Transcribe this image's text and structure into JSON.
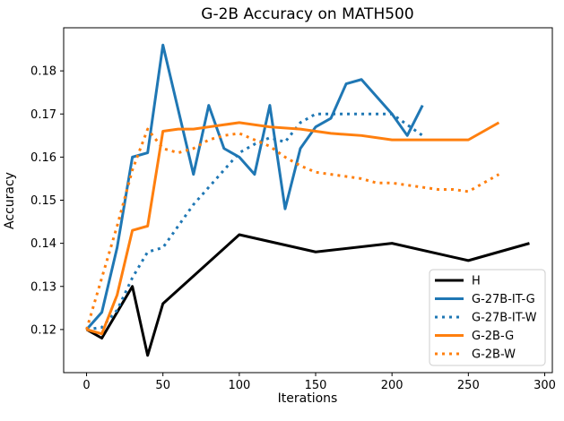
{
  "window": {
    "background": "#ffffff"
  },
  "chart_data": {
    "type": "line",
    "title": "G-2B Accuracy on MATH500",
    "xlabel": "Iterations",
    "ylabel": "Accuracy",
    "xlim": [
      -15,
      305
    ],
    "ylim": [
      0.11,
      0.19
    ],
    "xticks": [
      0,
      50,
      100,
      150,
      200,
      250,
      300
    ],
    "yticks": [
      0.12,
      0.13,
      0.14,
      0.15,
      0.16,
      0.17,
      0.18
    ],
    "grid": false,
    "legend_position": "lower right",
    "legend_entries": [
      "H",
      "G-27B-IT-G",
      "G-27B-IT-W",
      "G-2B-G",
      "G-2B-W"
    ],
    "series": [
      {
        "name": "H",
        "color": "#000000",
        "style": "solid",
        "x": [
          0,
          10,
          30,
          40,
          50,
          100,
          150,
          200,
          250,
          290
        ],
        "y": [
          0.12,
          0.118,
          0.13,
          0.114,
          0.126,
          0.142,
          0.138,
          0.14,
          0.136,
          0.14
        ]
      },
      {
        "name": "G-27B-IT-G",
        "color": "#1f77b4",
        "style": "solid",
        "x": [
          0,
          10,
          20,
          30,
          40,
          50,
          60,
          70,
          80,
          90,
          100,
          110,
          120,
          130,
          140,
          150,
          160,
          170,
          180,
          190,
          200,
          210,
          220
        ],
        "y": [
          0.12,
          0.124,
          0.139,
          0.16,
          0.161,
          0.186,
          0.171,
          0.156,
          0.172,
          0.162,
          0.16,
          0.156,
          0.172,
          0.148,
          0.162,
          0.167,
          0.169,
          0.177,
          0.178,
          0.174,
          0.17,
          0.165,
          0.172
        ]
      },
      {
        "name": "G-27B-IT-W",
        "color": "#1f77b4",
        "style": "dotted",
        "x": [
          0,
          10,
          20,
          30,
          40,
          50,
          60,
          70,
          80,
          90,
          100,
          110,
          120,
          130,
          140,
          150,
          160,
          170,
          180,
          190,
          200,
          210,
          220
        ],
        "y": [
          0.12,
          0.1205,
          0.1245,
          0.132,
          0.138,
          0.139,
          0.144,
          0.149,
          0.153,
          0.157,
          0.161,
          0.163,
          0.1645,
          0.1635,
          0.168,
          0.17,
          0.17,
          0.17,
          0.17,
          0.17,
          0.17,
          0.1675,
          0.165
        ]
      },
      {
        "name": "G-2B-G",
        "color": "#ff7f0e",
        "style": "solid",
        "x": [
          0,
          10,
          20,
          30,
          40,
          50,
          60,
          70,
          80,
          90,
          100,
          120,
          140,
          160,
          180,
          200,
          220,
          240,
          250,
          260,
          270
        ],
        "y": [
          0.12,
          0.119,
          0.128,
          0.143,
          0.144,
          0.166,
          0.1665,
          0.1665,
          0.167,
          0.1675,
          0.168,
          0.167,
          0.1665,
          0.1655,
          0.165,
          0.164,
          0.164,
          0.164,
          0.164,
          0.166,
          0.168
        ]
      },
      {
        "name": "G-2B-W",
        "color": "#ff7f0e",
        "style": "dotted",
        "x": [
          0,
          10,
          20,
          30,
          40,
          50,
          60,
          70,
          80,
          90,
          100,
          110,
          120,
          130,
          140,
          150,
          160,
          170,
          180,
          190,
          200,
          210,
          220,
          230,
          240,
          250,
          260,
          270
        ],
        "y": [
          0.12,
          0.132,
          0.144,
          0.157,
          0.1665,
          0.162,
          0.161,
          0.162,
          0.164,
          0.165,
          0.1655,
          0.164,
          0.1625,
          0.16,
          0.158,
          0.1565,
          0.156,
          0.1555,
          0.155,
          0.154,
          0.154,
          0.1535,
          0.153,
          0.1525,
          0.1525,
          0.152,
          0.154,
          0.156
        ]
      }
    ]
  }
}
